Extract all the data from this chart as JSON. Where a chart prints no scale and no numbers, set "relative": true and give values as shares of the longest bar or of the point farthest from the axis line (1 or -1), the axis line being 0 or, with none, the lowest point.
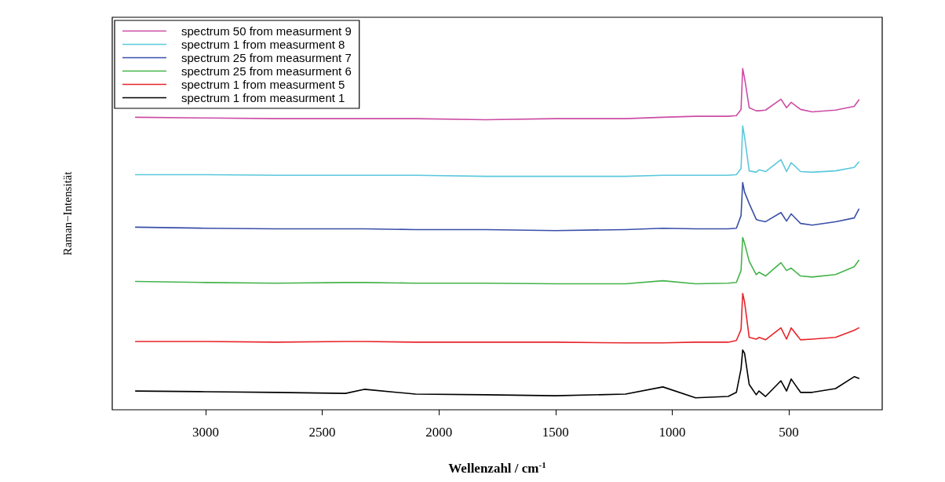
{
  "chart_data": {
    "type": "line",
    "relative": true,
    "xlabel": "Wellenzahl / cm$^{-1}$",
    "ylabel": "Raman−Intensität",
    "xlim": [
      3400,
      100
    ],
    "xticks": [
      3000,
      2500,
      2000,
      1500,
      1000,
      500
    ],
    "grid": false,
    "legend": "top left",
    "marker": "none",
    "line_style": "solid",
    "tick_labels": "x",
    "x": [
      3300,
      3000,
      2700,
      2400,
      2320,
      2100,
      1800,
      1500,
      1200,
      1040,
      900,
      760,
      725,
      705,
      698,
      690,
      670,
      640,
      628,
      600,
      534,
      510,
      490,
      450,
      400,
      300,
      220,
      200
    ],
    "series": [
      {
        "name": "spectrum 50 from measurment 9",
        "color": "#cc4ca5",
        "values": [
          0.857,
          0.855,
          0.853,
          0.853,
          0.853,
          0.853,
          0.85,
          0.853,
          0.853,
          0.857,
          0.86,
          0.86,
          0.862,
          0.88,
          1,
          0.972,
          0.885,
          0.876,
          0.876,
          0.878,
          0.91,
          0.885,
          0.901,
          0.88,
          0.873,
          0.878,
          0.889,
          0.908
        ]
      },
      {
        "name": "spectrum 1 from measurment 8",
        "color": "#5bc8dc",
        "values": [
          0.689,
          0.689,
          0.687,
          0.687,
          0.687,
          0.687,
          0.684,
          0.684,
          0.684,
          0.687,
          0.687,
          0.687,
          0.689,
          0.707,
          0.832,
          0.8,
          0.7,
          0.696,
          0.703,
          0.698,
          0.733,
          0.698,
          0.724,
          0.698,
          0.696,
          0.7,
          0.71,
          0.726
        ]
      },
      {
        "name": "spectrum 25 from measurment 7",
        "color": "#3a4fa8",
        "values": [
          0.535,
          0.532,
          0.53,
          0.53,
          0.53,
          0.528,
          0.528,
          0.525,
          0.528,
          0.532,
          0.53,
          0.53,
          0.532,
          0.569,
          0.666,
          0.638,
          0.604,
          0.558,
          0.555,
          0.551,
          0.578,
          0.553,
          0.574,
          0.546,
          0.541,
          0.551,
          0.562,
          0.588
        ]
      },
      {
        "name": "spectrum 25 from measurment 6",
        "color": "#44b34a",
        "values": [
          0.376,
          0.373,
          0.371,
          0.373,
          0.373,
          0.371,
          0.371,
          0.369,
          0.369,
          0.378,
          0.369,
          0.371,
          0.373,
          0.408,
          0.505,
          0.488,
          0.435,
          0.396,
          0.403,
          0.392,
          0.431,
          0.408,
          0.415,
          0.392,
          0.389,
          0.396,
          0.419,
          0.438
        ]
      },
      {
        "name": "spectrum 1 from measurment 5",
        "color": "#e8242a",
        "values": [
          0.2,
          0.2,
          0.198,
          0.2,
          0.2,
          0.198,
          0.198,
          0.198,
          0.196,
          0.196,
          0.198,
          0.198,
          0.203,
          0.235,
          0.341,
          0.316,
          0.212,
          0.207,
          0.212,
          0.205,
          0.24,
          0.207,
          0.24,
          0.205,
          0.207,
          0.212,
          0.233,
          0.24
        ]
      },
      {
        "name": "spectrum 1 from measurment 1",
        "color": "#000000",
        "values": [
          0.055,
          0.053,
          0.051,
          0.048,
          0.06,
          0.046,
          0.044,
          0.041,
          0.046,
          0.067,
          0.035,
          0.039,
          0.051,
          0.12,
          0.175,
          0.166,
          0.074,
          0.044,
          0.055,
          0.039,
          0.085,
          0.055,
          0.09,
          0.051,
          0.051,
          0.062,
          0.097,
          0.092
        ]
      }
    ]
  }
}
